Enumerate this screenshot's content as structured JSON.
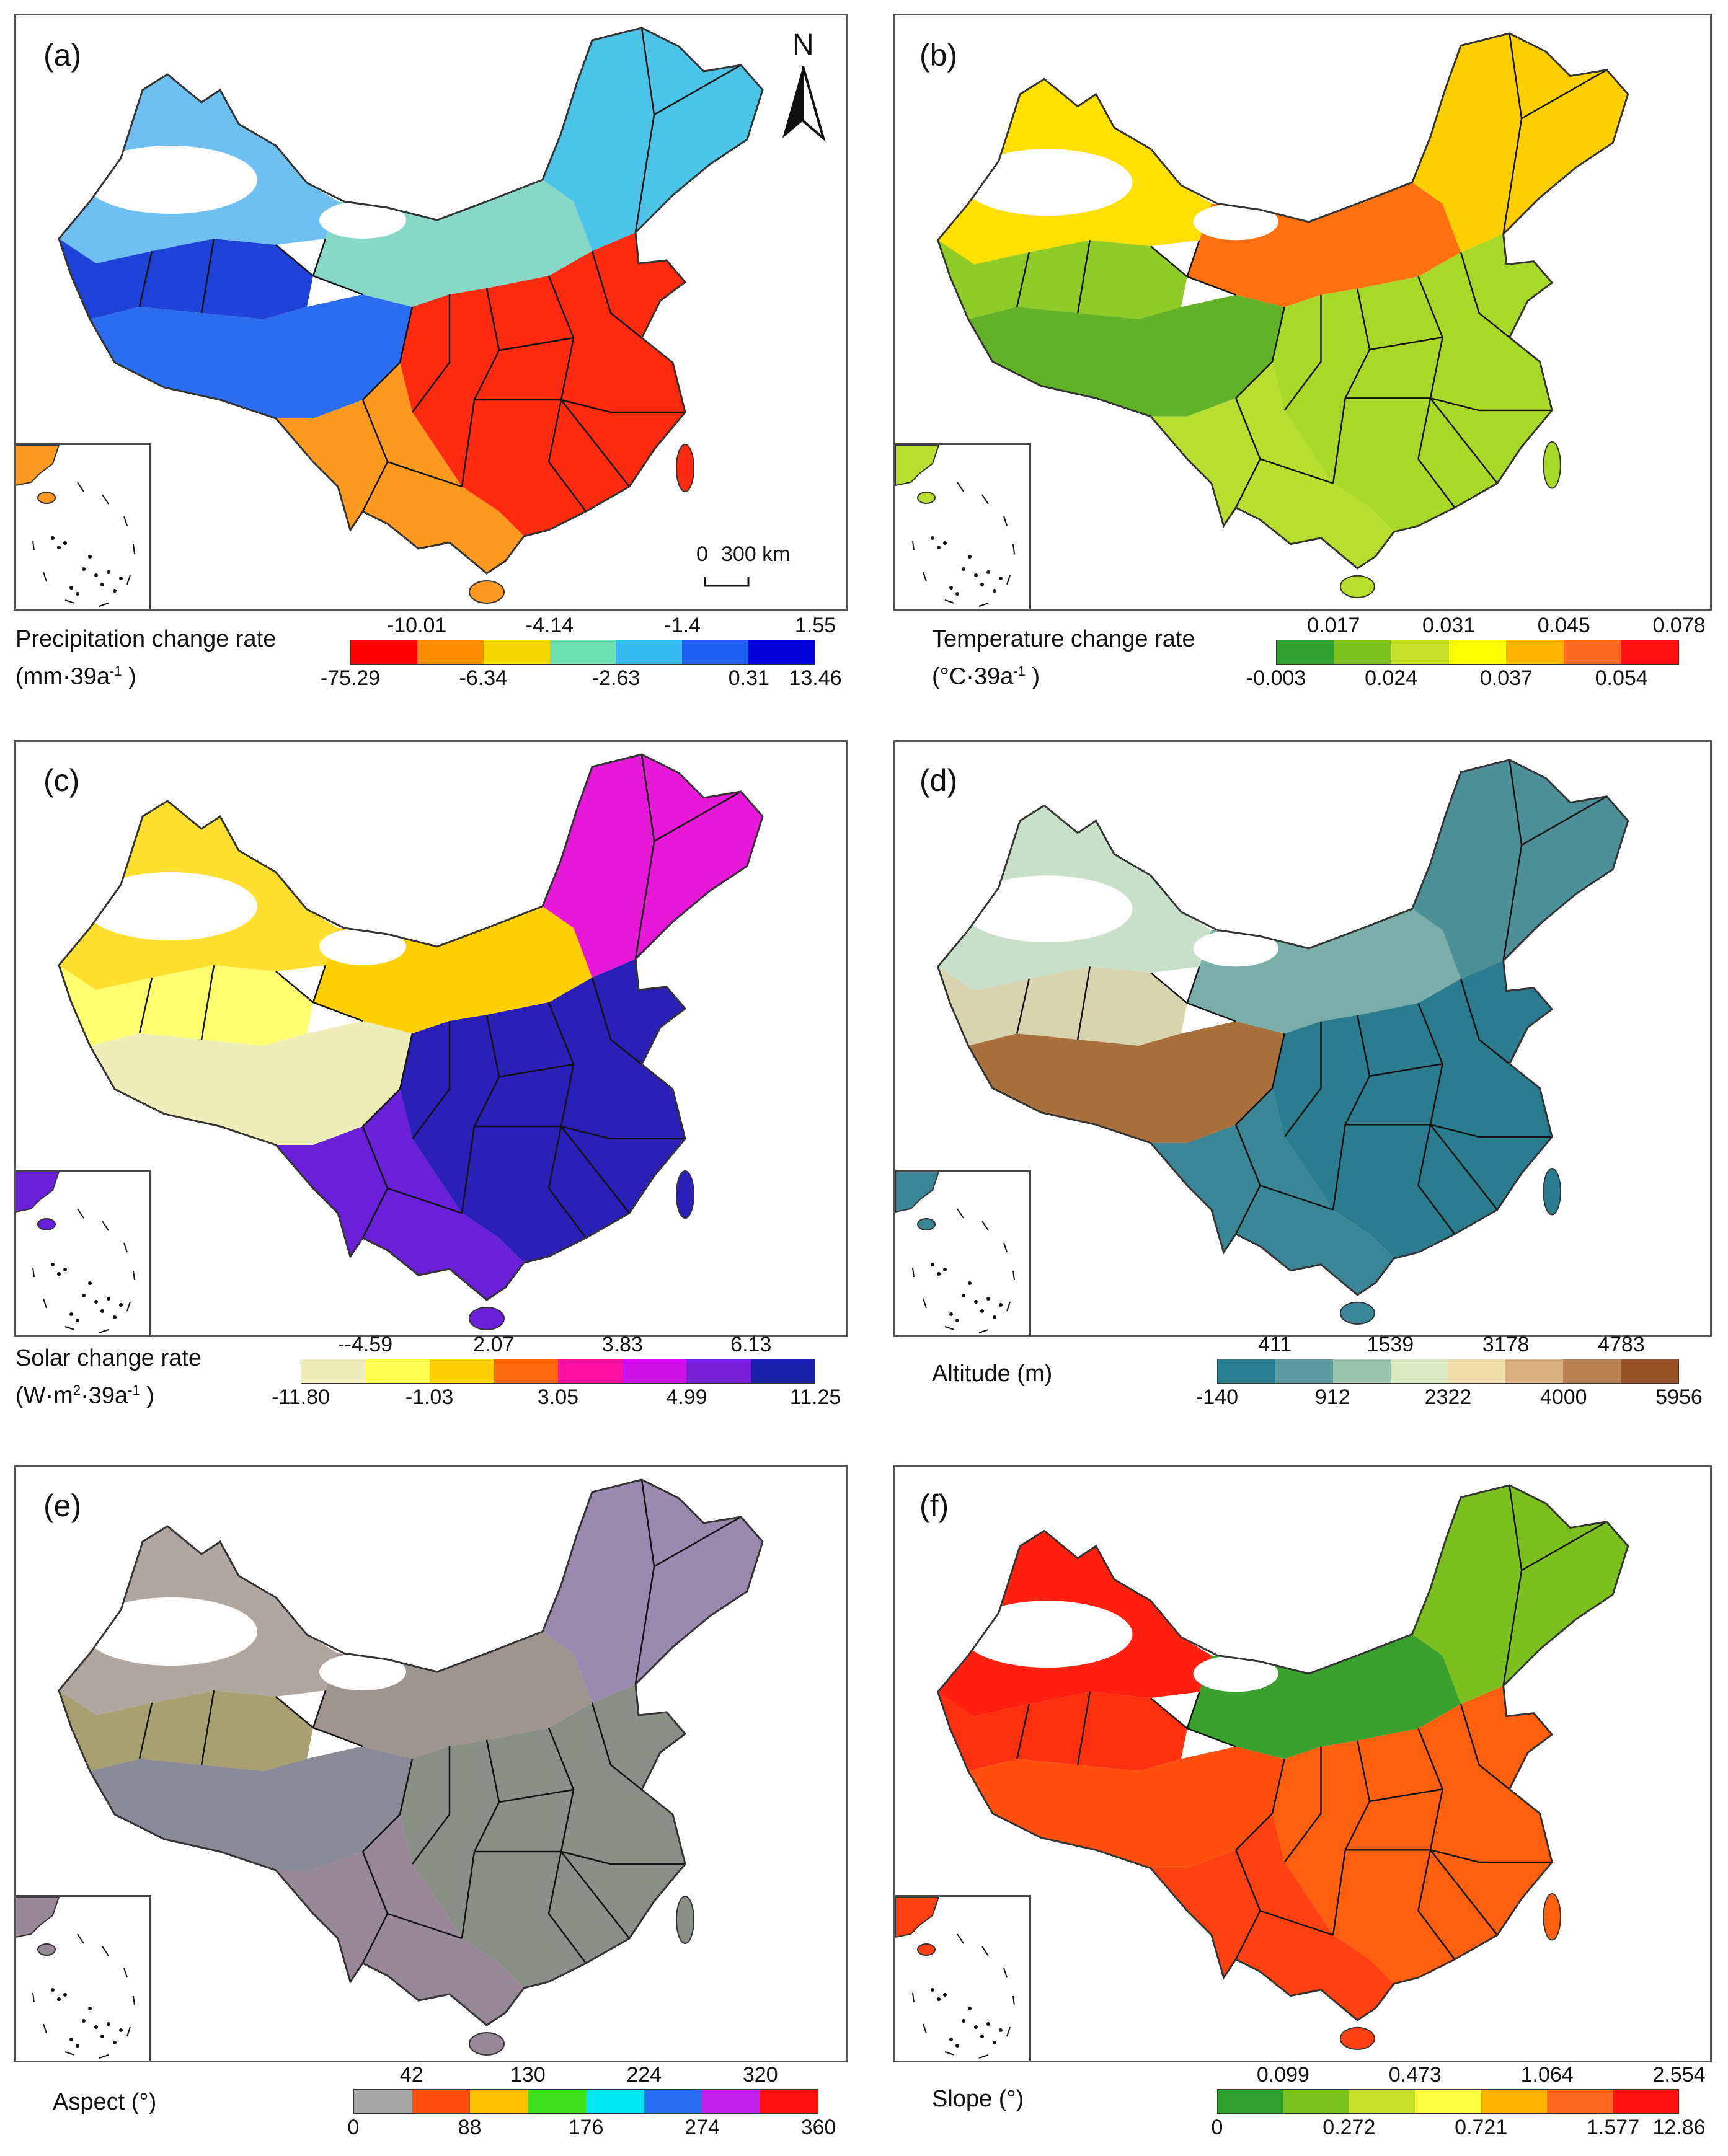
{
  "compass": {
    "label": "N"
  },
  "scale_bar": {
    "zero": "0",
    "distance": "300 km"
  },
  "panels": [
    {
      "id": "a",
      "label": "(a)",
      "legend": {
        "title_line1": "Precipitation change rate",
        "title_line2": "(mm·39a",
        "title_sup": "-1",
        "title_tail": " )",
        "colors": [
          "#ff0000",
          "#ff8c00",
          "#f5d800",
          "#6fe0b0",
          "#34b8f0",
          "#2060f0",
          "#0000d8"
        ],
        "top_ticks": [
          "-10.01",
          "-4.14",
          "-1.4",
          "1.55"
        ],
        "bottom_ticks": [
          "-75.29",
          "-6.34",
          "-2.63",
          "0.31",
          "13.46"
        ]
      },
      "map_colors": {
        "west": "#1f43d8",
        "tibet": "#2b6cf0",
        "northeast": "#4cc4e8",
        "southeast": "#ff2a10",
        "south": "#ff9a20",
        "north": "#88d8c8",
        "northwest": "#6fc0f0"
      }
    },
    {
      "id": "b",
      "label": "(b)",
      "legend": {
        "title_line1": "Temperature change rate",
        "title_line2": "(°C·39a",
        "title_sup": "-1",
        "title_tail": " )",
        "colors": [
          "#2ea02e",
          "#7cc11e",
          "#c6e02a",
          "#ffff00",
          "#ffb400",
          "#ff6a20",
          "#ff1010"
        ],
        "top_ticks": [
          "0.017",
          "0.031",
          "0.045",
          "0.078"
        ],
        "bottom_ticks": [
          "-0.003",
          "0.024",
          "0.037",
          "0.054"
        ]
      },
      "map_colors": {
        "west": "#8fcc28",
        "tibet": "#62b228",
        "northeast": "#ffd000",
        "southeast": "#a8d828",
        "south": "#b8de30",
        "north": "#ff7010",
        "northwest": "#ffe000"
      }
    },
    {
      "id": "c",
      "label": "(c)",
      "legend": {
        "title_line1": "Solar change rate",
        "title_line2": "(W·m",
        "title_sup": "2",
        "title_tail": "·39a",
        "title_sup2": "-1",
        "title_tail2": " )",
        "colors": [
          "#f0eeb8",
          "#ffff50",
          "#ffd000",
          "#ff6a10",
          "#ff10a0",
          "#d010e8",
          "#7a20d8",
          "#1a20a8"
        ],
        "top_ticks": [
          "--4.59",
          "2.07",
          "3.83",
          "6.13"
        ],
        "bottom_ticks": [
          "-11.80",
          "-1.03",
          "3.05",
          "4.99",
          "11.25"
        ]
      },
      "map_colors": {
        "west": "#ffff70",
        "tibet": "#f0eeb8",
        "northeast": "#e818d8",
        "southeast": "#2a20b8",
        "south": "#6a20d8",
        "north": "#ffd000",
        "northwest": "#ffe030"
      }
    },
    {
      "id": "d",
      "label": "(d)",
      "legend": {
        "title_line1": "Altitude (m)",
        "colors": [
          "#2a7f90",
          "#5c9aa0",
          "#98c2ac",
          "#d8e8c0",
          "#f0dca8",
          "#d8b080",
          "#b88050",
          "#985228"
        ],
        "top_ticks": [
          "411",
          "1539",
          "3178",
          "4783"
        ],
        "bottom_ticks": [
          "-140",
          "912",
          "2322",
          "4000",
          "5956"
        ]
      },
      "map_colors": {
        "west": "#d8d4b0",
        "tibet": "#a8703c",
        "northeast": "#4e9098",
        "southeast": "#2a7c8e",
        "south": "#3a8696",
        "north": "#7aaeaa",
        "northwest": "#c8e0c8"
      }
    },
    {
      "id": "e",
      "label": "(e)",
      "legend": {
        "title_line1": "Aspect (°)",
        "colors": [
          "#a8a8a8",
          "#ff5010",
          "#ffc000",
          "#40e020",
          "#00e8f0",
          "#2a6cf0",
          "#c020e8",
          "#ff1010"
        ],
        "top_ticks": [
          "42",
          "130",
          "224",
          "320"
        ],
        "bottom_ticks": [
          "0",
          "88",
          "176",
          "274",
          "360"
        ]
      },
      "map_colors": {
        "west": "#a8a070",
        "tibet": "#8a8a98",
        "northeast": "#9a8ab0",
        "southeast": "#8a9088",
        "south": "#988898",
        "north": "#a09490",
        "northwest": "#b0a8a0"
      }
    },
    {
      "id": "f",
      "label": "(f)",
      "legend": {
        "title_line1": "Slope (°)",
        "colors": [
          "#2ea02e",
          "#7cc11e",
          "#c6e02a",
          "#ffff40",
          "#ffb400",
          "#ff6a20",
          "#ff1010"
        ],
        "top_ticks": [
          "0.099",
          "0.473",
          "1.064",
          "2.554"
        ],
        "bottom_ticks": [
          "0",
          "0.272",
          "0.721",
          "1.577",
          "12.86"
        ]
      },
      "map_colors": {
        "west": "#ff3010",
        "tibet": "#ff5010",
        "northeast": "#7cc020",
        "southeast": "#ff6010",
        "south": "#ff4010",
        "north": "#3aa02e",
        "northwest": "#ff2010"
      }
    }
  ]
}
